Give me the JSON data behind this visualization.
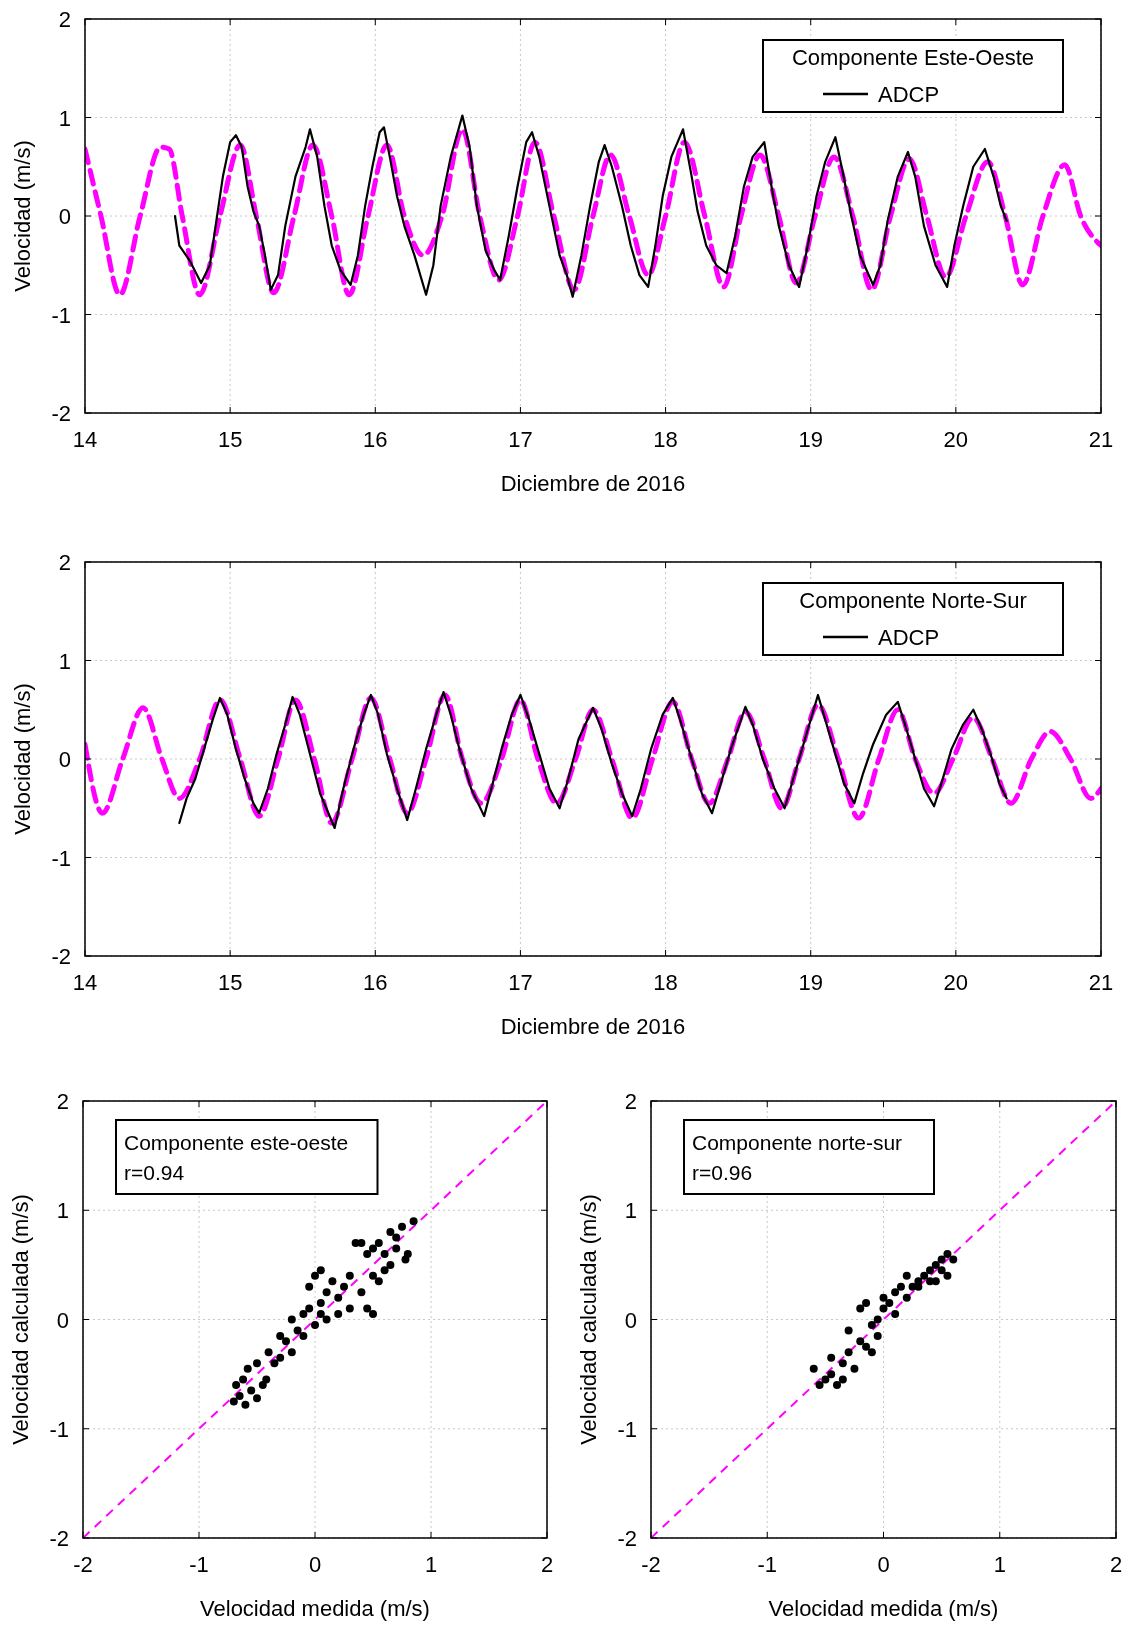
{
  "chart_data": [
    {
      "type": "line",
      "xlabel": "Diciembre de 2016",
      "ylabel": "Velocidad (m/s)",
      "legend_title": "Componente Este-Oeste",
      "legend": "top right",
      "grid": true,
      "xlim": [
        14,
        21
      ],
      "ylim": [
        -2,
        2
      ],
      "xticks": [
        14,
        15,
        16,
        17,
        18,
        19,
        20,
        21
      ],
      "yticks": [
        -2,
        -1,
        0,
        1,
        2
      ],
      "series": [
        {
          "name": "ADCP",
          "color": "#000000",
          "line_style": "solid",
          "x": [
            14.62,
            14.65,
            14.72,
            14.8,
            14.86,
            14.9,
            14.95,
            15.0,
            15.04,
            15.08,
            15.12,
            15.16,
            15.2,
            15.24,
            15.28,
            15.33,
            15.38,
            15.45,
            15.52,
            15.55,
            15.6,
            15.65,
            15.7,
            15.76,
            15.83,
            15.88,
            15.93,
            15.98,
            16.03,
            16.06,
            16.1,
            16.15,
            16.2,
            16.27,
            16.35,
            16.4,
            16.45,
            16.52,
            16.6,
            16.65,
            16.7,
            16.76,
            16.82,
            16.86,
            16.92,
            16.98,
            17.04,
            17.08,
            17.13,
            17.2,
            17.27,
            17.32,
            17.36,
            17.42,
            17.48,
            17.54,
            17.58,
            17.63,
            17.7,
            17.76,
            17.82,
            17.88,
            17.93,
            17.98,
            18.04,
            18.12,
            18.18,
            18.22,
            18.28,
            18.35,
            18.42,
            18.48,
            18.54,
            18.6,
            18.68,
            18.73,
            18.78,
            18.85,
            18.92,
            18.98,
            19.04,
            19.1,
            19.17,
            19.22,
            19.28,
            19.34,
            19.43,
            19.48,
            19.53,
            19.6,
            19.67,
            19.72,
            19.78,
            19.86,
            19.94,
            19.99,
            20.05,
            20.12,
            20.2,
            20.26,
            20.31,
            20.35
          ],
          "values": [
            0,
            -0.3,
            -0.45,
            -0.68,
            -0.5,
            -0.1,
            0.4,
            0.75,
            0.82,
            0.7,
            0.3,
            0.05,
            -0.1,
            -0.4,
            -0.75,
            -0.6,
            -0.1,
            0.4,
            0.7,
            0.88,
            0.6,
            0.1,
            -0.3,
            -0.55,
            -0.7,
            -0.4,
            0.1,
            0.5,
            0.85,
            0.9,
            0.6,
            0.2,
            -0.1,
            -0.4,
            -0.8,
            -0.5,
            0.1,
            0.6,
            1.02,
            0.7,
            0.1,
            -0.35,
            -0.55,
            -0.65,
            -0.2,
            0.3,
            0.75,
            0.85,
            0.6,
            0.1,
            -0.4,
            -0.6,
            -0.82,
            -0.4,
            0.1,
            0.55,
            0.72,
            0.5,
            0.1,
            -0.3,
            -0.6,
            -0.72,
            -0.3,
            0.2,
            0.6,
            0.88,
            0.4,
            0.05,
            -0.3,
            -0.5,
            -0.58,
            -0.2,
            0.3,
            0.6,
            0.75,
            0.3,
            -0.1,
            -0.5,
            -0.72,
            -0.3,
            0.2,
            0.55,
            0.8,
            0.45,
            0,
            -0.4,
            -0.7,
            -0.5,
            -0.05,
            0.4,
            0.65,
            0.4,
            -0.1,
            -0.5,
            -0.72,
            -0.3,
            0.1,
            0.5,
            0.68,
            0.4,
            0.1,
            -0.05
          ]
        },
        {
          "color": "#ff00ff",
          "line_style": "dashed",
          "x": [
            14.0,
            14.11,
            14.24,
            14.38,
            14.52,
            14.58,
            14.67,
            14.79,
            14.93,
            15.07,
            15.18,
            15.3,
            15.44,
            15.57,
            15.7,
            15.82,
            15.95,
            16.08,
            16.2,
            16.33,
            16.46,
            16.6,
            16.72,
            16.85,
            16.98,
            17.1,
            17.23,
            17.37,
            17.5,
            17.62,
            17.75,
            17.88,
            18.0,
            18.13,
            18.27,
            18.4,
            18.52,
            18.65,
            18.78,
            18.9,
            19.03,
            19.16,
            19.29,
            19.42,
            19.55,
            19.68,
            19.8,
            19.93,
            20.07,
            20.22,
            20.34,
            20.46,
            20.6,
            20.75,
            20.86,
            21.0
          ],
          "values": [
            0.68,
            0,
            -0.8,
            0,
            0.7,
            0.68,
            0,
            -0.8,
            0,
            0.72,
            0,
            -0.78,
            0,
            0.72,
            0,
            -0.8,
            0,
            0.72,
            0,
            -0.4,
            0,
            0.88,
            0,
            -0.65,
            0,
            0.75,
            0,
            -0.75,
            0,
            0.62,
            0,
            -0.6,
            0,
            0.75,
            0,
            -0.72,
            0,
            0.62,
            0,
            -0.68,
            0,
            0.6,
            0,
            -0.75,
            0,
            0.58,
            0,
            -0.62,
            0,
            0.55,
            0,
            -0.7,
            0,
            0.52,
            0,
            -0.3
          ]
        }
      ]
    },
    {
      "type": "line",
      "xlabel": "Diciembre de 2016",
      "ylabel": "Velocidad (m/s)",
      "legend_title": "Componente Norte-Sur",
      "legend": "top right",
      "grid": true,
      "xlim": [
        14,
        21
      ],
      "ylim": [
        -2,
        2
      ],
      "xticks": [
        14,
        15,
        16,
        17,
        18,
        19,
        20,
        21
      ],
      "yticks": [
        -2,
        -1,
        0,
        1,
        2
      ],
      "series": [
        {
          "name": "ADCP",
          "color": "#000000",
          "line_style": "solid",
          "x": [
            14.65,
            14.7,
            14.76,
            14.82,
            14.88,
            14.93,
            14.98,
            15.04,
            15.1,
            15.16,
            15.2,
            15.26,
            15.32,
            15.38,
            15.43,
            15.48,
            15.55,
            15.62,
            15.72,
            15.78,
            15.85,
            15.92,
            15.97,
            16.02,
            16.08,
            16.15,
            16.22,
            16.28,
            16.35,
            16.42,
            16.47,
            16.52,
            16.58,
            16.66,
            16.75,
            16.8,
            16.87,
            16.94,
            17.0,
            17.06,
            17.13,
            17.2,
            17.27,
            17.33,
            17.4,
            17.5,
            17.56,
            17.63,
            17.7,
            17.77,
            17.83,
            17.9,
            17.98,
            18.05,
            18.1,
            18.17,
            18.25,
            18.32,
            18.38,
            18.45,
            18.55,
            18.6,
            18.67,
            18.75,
            18.82,
            18.88,
            18.95,
            19.05,
            19.1,
            19.17,
            19.23,
            19.3,
            19.36,
            19.43,
            19.52,
            19.6,
            19.65,
            19.72,
            19.78,
            19.85,
            19.9,
            19.97,
            20.05,
            20.12,
            20.18,
            20.25,
            20.3,
            20.35
          ],
          "values": [
            -0.65,
            -0.4,
            -0.2,
            0.1,
            0.4,
            0.62,
            0.45,
            0.1,
            -0.2,
            -0.45,
            -0.55,
            -0.3,
            0.05,
            0.35,
            0.63,
            0.45,
            0.05,
            -0.35,
            -0.7,
            -0.3,
            0.1,
            0.45,
            0.65,
            0.45,
            0.05,
            -0.3,
            -0.62,
            -0.3,
            0.1,
            0.45,
            0.68,
            0.45,
            0.1,
            -0.3,
            -0.58,
            -0.3,
            0.1,
            0.45,
            0.65,
            0.4,
            0.05,
            -0.3,
            -0.5,
            -0.2,
            0.2,
            0.52,
            0.3,
            -0.05,
            -0.35,
            -0.58,
            -0.3,
            0.1,
            0.45,
            0.62,
            0.4,
            0.05,
            -0.35,
            -0.55,
            -0.25,
            0.1,
            0.53,
            0.35,
            0,
            -0.3,
            -0.5,
            -0.2,
            0.15,
            0.65,
            0.4,
            0.05,
            -0.25,
            -0.45,
            -0.15,
            0.15,
            0.45,
            0.58,
            0.35,
            0,
            -0.3,
            -0.48,
            -0.25,
            0.1,
            0.35,
            0.5,
            0.3,
            0,
            -0.25,
            -0.4
          ]
        },
        {
          "color": "#ff00ff",
          "line_style": "dashed",
          "x": [
            14.0,
            14.12,
            14.26,
            14.4,
            14.53,
            14.65,
            14.79,
            14.93,
            15.07,
            15.2,
            15.33,
            15.45,
            15.58,
            15.7,
            15.84,
            15.97,
            16.1,
            16.22,
            16.35,
            16.48,
            16.6,
            16.73,
            16.87,
            17.0,
            17.12,
            17.25,
            17.38,
            17.5,
            17.63,
            17.77,
            17.91,
            18.05,
            18.18,
            18.3,
            18.43,
            18.55,
            18.68,
            18.8,
            18.92,
            19.05,
            19.19,
            19.33,
            19.47,
            19.6,
            19.72,
            19.85,
            19.98,
            20.12,
            20.25,
            20.38,
            20.52,
            20.65,
            20.79,
            20.93,
            21.0
          ],
          "values": [
            0.15,
            -0.55,
            0,
            0.52,
            0,
            -0.4,
            0,
            0.6,
            0,
            -0.58,
            0,
            0.6,
            0,
            -0.65,
            0,
            0.62,
            0,
            -0.55,
            0,
            0.65,
            0,
            -0.45,
            0,
            0.6,
            0,
            -0.45,
            0,
            0.5,
            0,
            -0.6,
            0,
            0.58,
            0,
            -0.45,
            0,
            0.48,
            0,
            -0.5,
            0,
            0.55,
            0,
            -0.6,
            0,
            0.5,
            0,
            -0.35,
            0,
            0.42,
            0,
            -0.45,
            0,
            0.28,
            0,
            -0.4,
            -0.3
          ]
        }
      ]
    },
    {
      "type": "scatter",
      "xlabel": "Velocidad medida (m/s)",
      "ylabel": "Velocidad calculada (m/s)",
      "annotations": [
        "Componente este-oeste",
        "r=0.94"
      ],
      "grid": true,
      "marker": "circle",
      "xlim": [
        -2,
        2
      ],
      "ylim": [
        -2,
        2
      ],
      "xticks": [
        -2,
        -1,
        0,
        1,
        2
      ],
      "yticks": [
        -2,
        -1,
        0,
        1,
        2
      ],
      "series": [
        {
          "color": "#000000",
          "x": [
            -0.7,
            -0.65,
            -0.6,
            -0.55,
            -0.68,
            -0.62,
            -0.5,
            -0.45,
            -0.58,
            -0.5,
            -0.42,
            -0.35,
            -0.4,
            -0.3,
            -0.25,
            -0.2,
            -0.15,
            -0.1,
            -0.1,
            -0.05,
            0.0,
            0.05,
            0.05,
            0.1,
            -0.05,
            0.0,
            0.05,
            0.1,
            0.15,
            0.2,
            0.25,
            0.3,
            0.35,
            0.4,
            0.45,
            0.5,
            0.55,
            0.5,
            0.55,
            0.6,
            0.65,
            0.65,
            0.7,
            0.75,
            0.8,
            0.85,
            0.78,
            0.4,
            0.45,
            0.5,
            0.3,
            0.2,
            0.6,
            0.7,
            -0.3,
            -0.2
          ],
          "values": [
            -0.75,
            -0.7,
            -0.78,
            -0.65,
            -0.6,
            -0.55,
            -0.72,
            -0.6,
            -0.45,
            -0.4,
            -0.55,
            -0.4,
            -0.3,
            -0.35,
            -0.2,
            -0.3,
            -0.1,
            -0.15,
            0.05,
            0.1,
            -0.05,
            0.15,
            0.05,
            0.0,
            0.3,
            0.4,
            0.45,
            0.25,
            0.35,
            0.2,
            0.3,
            0.4,
            0.7,
            0.7,
            0.6,
            0.65,
            0.7,
            0.4,
            0.35,
            0.45,
            0.5,
            0.8,
            0.75,
            0.85,
            0.6,
            0.9,
            0.55,
            0.25,
            0.1,
            0.05,
            0.1,
            0.05,
            0.6,
            0.65,
            -0.15,
            0.0
          ]
        },
        {
          "type": "line",
          "color": "#ff00ff",
          "line_style": "dashed",
          "marker": "none",
          "x": [
            -2,
            2
          ],
          "values": [
            -2,
            2
          ]
        }
      ]
    },
    {
      "type": "scatter",
      "xlabel": "Velocidad medida (m/s)",
      "ylabel": "Velocidad calculada (m/s)",
      "annotations": [
        "Componente norte-sur",
        "r=0.96"
      ],
      "grid": true,
      "marker": "circle",
      "xlim": [
        -2,
        2
      ],
      "ylim": [
        -2,
        2
      ],
      "xticks": [
        -2,
        -1,
        0,
        1,
        2
      ],
      "yticks": [
        -2,
        -1,
        0,
        1,
        2
      ],
      "series": [
        {
          "color": "#000000",
          "x": [
            -0.55,
            -0.5,
            -0.45,
            -0.6,
            -0.4,
            -0.35,
            -0.45,
            -0.3,
            -0.25,
            -0.2,
            -0.3,
            -0.15,
            -0.1,
            -0.2,
            -0.15,
            -0.05,
            0.0,
            0.05,
            0.1,
            0.0,
            0.1,
            0.15,
            0.2,
            0.25,
            0.3,
            0.35,
            0.4,
            0.45,
            0.5,
            0.55,
            0.6,
            0.45,
            0.5,
            0.55,
            -0.35,
            -0.1,
            -0.05,
            0.2,
            0.3,
            0.4
          ],
          "values": [
            -0.6,
            -0.55,
            -0.5,
            -0.45,
            -0.6,
            -0.4,
            -0.35,
            -0.3,
            -0.45,
            -0.2,
            -0.1,
            -0.25,
            -0.05,
            0.1,
            0.15,
            0.0,
            0.1,
            0.15,
            0.05,
            0.2,
            0.25,
            0.3,
            0.2,
            0.3,
            0.35,
            0.4,
            0.45,
            0.5,
            0.55,
            0.6,
            0.55,
            0.35,
            0.45,
            0.4,
            -0.55,
            -0.3,
            -0.15,
            0.4,
            0.3,
            0.35
          ]
        },
        {
          "type": "line",
          "color": "#ff00ff",
          "line_style": "dashed",
          "marker": "none",
          "x": [
            -2,
            2
          ],
          "values": [
            -2,
            2
          ]
        }
      ]
    }
  ]
}
